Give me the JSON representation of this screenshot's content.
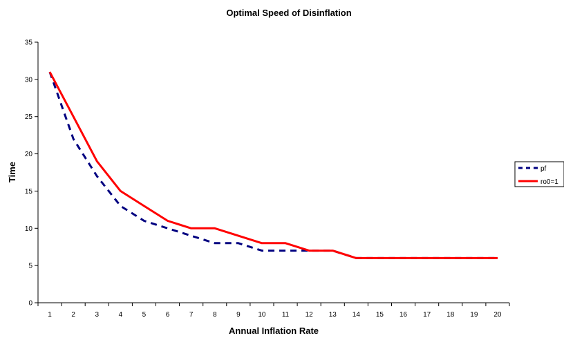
{
  "chart_data": {
    "type": "line",
    "title": "Optimal Speed of Disinflation",
    "xlabel": "Annual Inflation Rate",
    "ylabel": "Time",
    "categories": [
      "1",
      "2",
      "3",
      "4",
      "5",
      "6",
      "7",
      "8",
      "9",
      "10",
      "11",
      "12",
      "13",
      "14",
      "15",
      "16",
      "17",
      "18",
      "19",
      "20"
    ],
    "ylim": [
      0,
      35
    ],
    "yticks": [
      0,
      5,
      10,
      15,
      20,
      25,
      30,
      35
    ],
    "grid": false,
    "legend_position": "right",
    "series": [
      {
        "name": "pf",
        "color": "#000080",
        "style": "dashed",
        "values": [
          31,
          22,
          17,
          13,
          11,
          10,
          9,
          8,
          8,
          7,
          7,
          7,
          7,
          6,
          6,
          6,
          6,
          6,
          6,
          6
        ]
      },
      {
        "name": "ro0=1",
        "color": "#ff0000",
        "style": "solid",
        "values": [
          31,
          25,
          19,
          15,
          13,
          11,
          10,
          10,
          9,
          8,
          8,
          7,
          7,
          6,
          6,
          6,
          6,
          6,
          6,
          6
        ]
      }
    ]
  }
}
